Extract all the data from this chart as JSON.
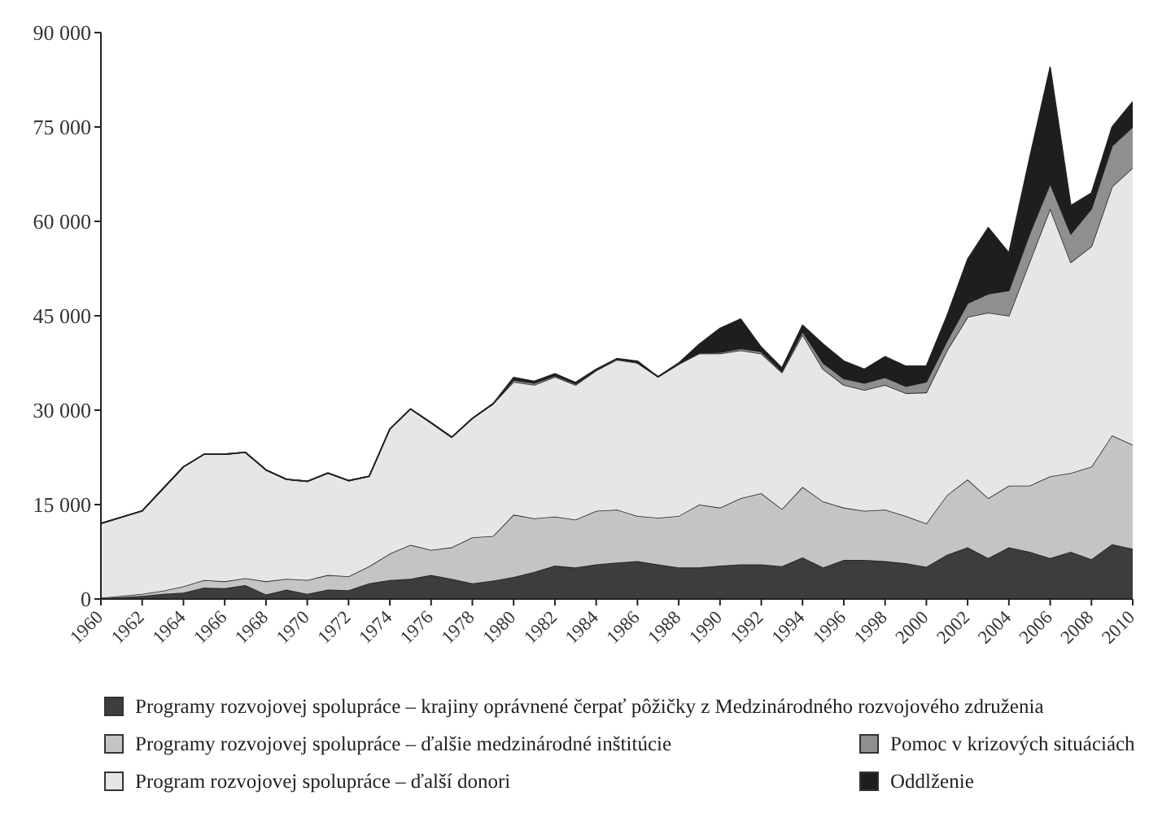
{
  "chart_data": {
    "type": "area",
    "stacked": true,
    "legend": "bottom",
    "x": [
      1960,
      1961,
      1962,
      1963,
      1964,
      1965,
      1966,
      1967,
      1968,
      1969,
      1970,
      1971,
      1972,
      1973,
      1974,
      1975,
      1976,
      1977,
      1978,
      1979,
      1980,
      1981,
      1982,
      1983,
      1984,
      1985,
      1986,
      1987,
      1988,
      1989,
      1990,
      1991,
      1992,
      1993,
      1994,
      1995,
      1996,
      1997,
      1998,
      1999,
      2000,
      2001,
      2002,
      2003,
      2004,
      2005,
      2006,
      2007,
      2008,
      2009,
      2010
    ],
    "xlim": [
      1960,
      2010
    ],
    "xticks": [
      1960,
      1962,
      1964,
      1966,
      1968,
      1970,
      1972,
      1974,
      1976,
      1978,
      1980,
      1982,
      1984,
      1986,
      1988,
      1990,
      1992,
      1994,
      1996,
      1998,
      2000,
      2002,
      2004,
      2006,
      2008,
      2010
    ],
    "ylim": [
      0,
      90000
    ],
    "yticks": [
      {
        "value": 0,
        "label": "0"
      },
      {
        "value": 15000,
        "label": "15 000"
      },
      {
        "value": 30000,
        "label": "30 000"
      },
      {
        "value": 45000,
        "label": "45 000"
      },
      {
        "value": 60000,
        "label": "60 000"
      },
      {
        "value": 75000,
        "label": "75 000"
      },
      {
        "value": 90000,
        "label": "90 000"
      }
    ],
    "series": [
      {
        "name": "Programy rozvojovej spolupráce – krajiny oprávnené čerpať pôžičky z Medzinárodného rozvojového združenia",
        "color": "#3d3d3d",
        "values": [
          100,
          300,
          500,
          800,
          1000,
          1800,
          1700,
          2200,
          700,
          1500,
          800,
          1500,
          1400,
          2500,
          3000,
          3200,
          3800,
          3200,
          2500,
          2900,
          3500,
          4300,
          5300,
          5000,
          5500,
          5800,
          6000,
          5500,
          5000,
          5000,
          5300,
          5500,
          5500,
          5200,
          6600,
          5000,
          6200,
          6200,
          6000,
          5700,
          5100,
          7000,
          8200,
          6500,
          8200,
          7500,
          6500,
          7500,
          6300,
          8700,
          8000
        ]
      },
      {
        "name": "Programy rozvojovej spolupráce – ďalšie medzinárodné inštitúcie",
        "color": "#c4c4c4",
        "values": [
          100,
          200,
          300,
          500,
          1000,
          1200,
          1100,
          1100,
          2100,
          1700,
          2200,
          2300,
          2200,
          2700,
          4200,
          5400,
          4000,
          5000,
          7300,
          7100,
          9900,
          8500,
          7800,
          7600,
          8500,
          8400,
          7200,
          7400,
          8200,
          10000,
          9200,
          10500,
          11300,
          9100,
          11200,
          10500,
          8300,
          7800,
          8200,
          7500,
          6900,
          9500,
          10800,
          9500,
          9800,
          10500,
          13000,
          12500,
          14700,
          17300,
          16500
        ]
      },
      {
        "name": "Program rozvojovej spolupráce – ďalší donori",
        "color": "#e5e6e5",
        "values": [
          11800,
          12500,
          13200,
          16200,
          19000,
          20000,
          20200,
          20000,
          17700,
          15800,
          15700,
          16200,
          15200,
          14300,
          19800,
          21600,
          20200,
          17500,
          18900,
          21000,
          21100,
          21200,
          22200,
          21400,
          22300,
          23800,
          24300,
          22400,
          24100,
          24000,
          24500,
          23500,
          22200,
          21700,
          24200,
          21000,
          19500,
          19200,
          19800,
          19500,
          20800,
          23000,
          25800,
          29500,
          27000,
          35500,
          42500,
          33500,
          35000,
          39500,
          44000
        ]
      },
      {
        "name": "Pomoc v krizových situáciách",
        "color": "#8f8f8f",
        "values": [
          0,
          0,
          0,
          0,
          0,
          0,
          0,
          0,
          0,
          0,
          0,
          0,
          0,
          0,
          0,
          0,
          0,
          0,
          0,
          0,
          300,
          300,
          200,
          200,
          100,
          100,
          100,
          0,
          100,
          100,
          200,
          300,
          300,
          200,
          500,
          1000,
          1000,
          1100,
          1200,
          1100,
          1700,
          1500,
          2200,
          3000,
          4000,
          4500,
          4000,
          4500,
          6000,
          6500,
          6500
        ]
      },
      {
        "name": "Oddlženie",
        "color": "#1e1e1e",
        "values": [
          0,
          0,
          0,
          0,
          0,
          0,
          0,
          0,
          0,
          0,
          0,
          0,
          0,
          0,
          0,
          0,
          0,
          0,
          0,
          0,
          400,
          300,
          300,
          200,
          100,
          100,
          200,
          0,
          100,
          1400,
          3800,
          4700,
          700,
          500,
          1000,
          3000,
          2800,
          2200,
          3300,
          3200,
          2500,
          4000,
          7000,
          10500,
          6000,
          12000,
          18500,
          4500,
          2500,
          3000,
          4000
        ]
      }
    ]
  }
}
